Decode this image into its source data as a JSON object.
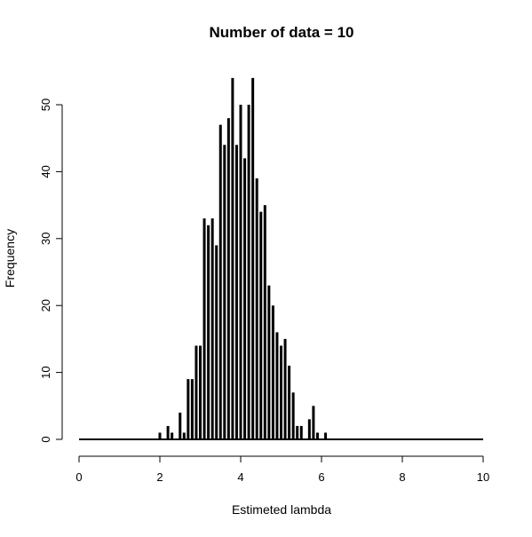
{
  "chart_data": {
    "type": "bar",
    "title": "Number of data = 10",
    "xlabel": "Estimeted lambda",
    "ylabel": "Frequency",
    "xlim": [
      0,
      10
    ],
    "ylim": [
      0,
      54
    ],
    "grid": false,
    "xticks": [
      0,
      2,
      4,
      6,
      8,
      10
    ],
    "yticks": [
      0,
      10,
      20,
      30,
      40,
      50
    ],
    "x": [
      2.0,
      2.2,
      2.3,
      2.5,
      2.6,
      2.7,
      2.8,
      2.9,
      3.0,
      3.1,
      3.2,
      3.3,
      3.4,
      3.5,
      3.6,
      3.7,
      3.8,
      3.9,
      4.0,
      4.1,
      4.2,
      4.3,
      4.4,
      4.5,
      4.6,
      4.7,
      4.8,
      4.9,
      5.0,
      5.1,
      5.2,
      5.3,
      5.4,
      5.5,
      5.7,
      5.8,
      5.9,
      6.1
    ],
    "values": [
      1,
      2,
      1,
      4,
      1,
      9,
      9,
      14,
      14,
      33,
      32,
      33,
      29,
      47,
      44,
      48,
      54,
      44,
      50,
      42,
      50,
      54,
      39,
      34,
      35,
      23,
      20,
      16,
      14,
      15,
      11,
      7,
      2,
      2,
      3,
      5,
      1,
      1
    ]
  }
}
